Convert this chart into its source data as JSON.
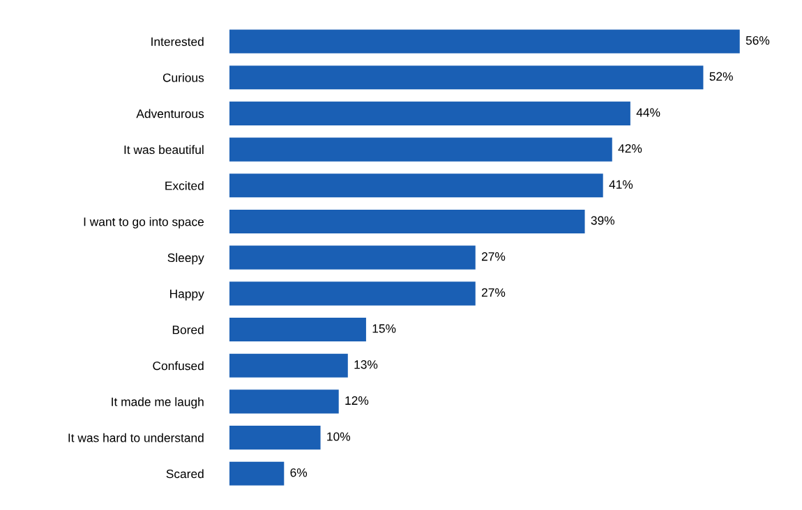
{
  "chart_data": {
    "type": "bar",
    "orientation": "horizontal",
    "categories": [
      "Interested",
      "Curious",
      "Adventurous",
      "It was beautiful",
      "Excited",
      "I want to go into space",
      "Sleepy",
      "Happy",
      "Bored",
      "Confused",
      "It made me laugh",
      "It was hard to understand",
      "Scared"
    ],
    "values": [
      56,
      52,
      44,
      42,
      41,
      39,
      27,
      27,
      15,
      13,
      12,
      10,
      6
    ],
    "value_labels": [
      "56%",
      "52%",
      "44%",
      "42%",
      "41%",
      "39%",
      "27%",
      "27%",
      "15%",
      "13%",
      "12%",
      "10%",
      "6%"
    ],
    "color": "#1a5fb4",
    "grid": false,
    "legend": false
  }
}
